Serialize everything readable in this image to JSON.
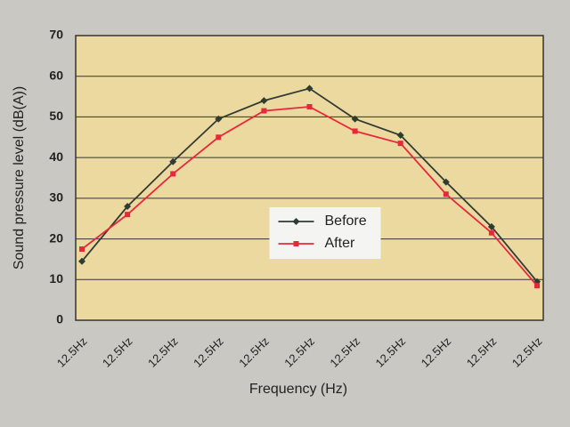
{
  "chart_data": {
    "type": "line",
    "x_label": "Frequency (Hz)",
    "y_label": "Sound pressure level (dB(A))",
    "categories": [
      "12.5Hz",
      "12.5Hz",
      "12.5Hz",
      "12.5Hz",
      "12.5Hz",
      "12.5Hz",
      "12.5Hz",
      "12.5Hz",
      "12.5Hz",
      "12.5Hz",
      "12.5Hz"
    ],
    "series": [
      {
        "name": "Before",
        "color": "#2f3b33",
        "marker": "diamond",
        "values": [
          14.5,
          28,
          39,
          49.5,
          54,
          57,
          49.5,
          45.5,
          34,
          23,
          9.5
        ]
      },
      {
        "name": "After",
        "color": "#e8283a",
        "marker": "square",
        "values": [
          17.5,
          26,
          36,
          45,
          51.5,
          52.5,
          46.5,
          43.5,
          31,
          21.5,
          8.5
        ]
      }
    ],
    "ylim": [
      0,
      70
    ],
    "yticks": [
      0,
      10,
      20,
      30,
      40,
      50,
      60,
      70
    ],
    "grid": true,
    "legend": "center"
  }
}
